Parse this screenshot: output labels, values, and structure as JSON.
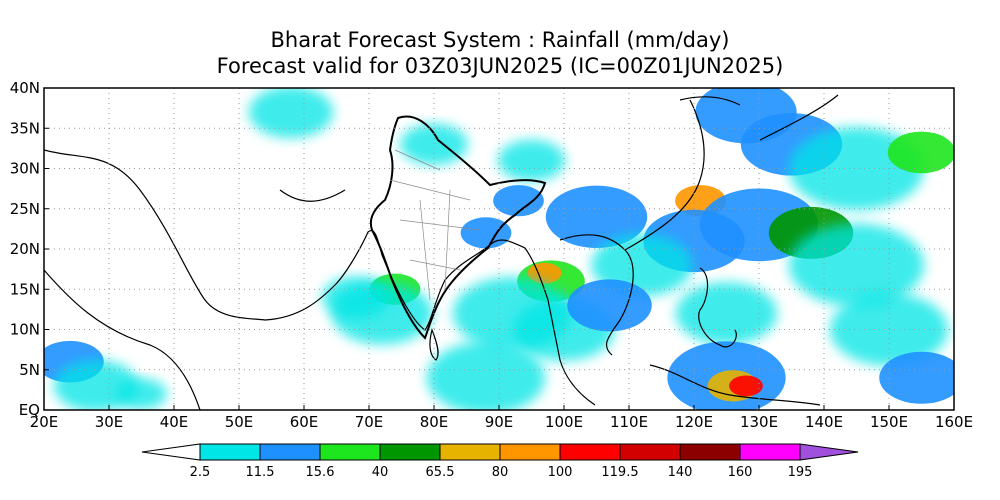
{
  "title_line1": "Bharat Forecast System : Rainfall (mm/day)",
  "title_line2": "Forecast valid for 03Z03JUN2025 (IC=00Z01JUN2025)",
  "map": {
    "lon_range": [
      20,
      160
    ],
    "lat_range": [
      0,
      40
    ],
    "lon_ticks": [
      "20E",
      "30E",
      "40E",
      "50E",
      "60E",
      "70E",
      "80E",
      "90E",
      "100E",
      "110E",
      "120E",
      "130E",
      "140E",
      "150E",
      "160E"
    ],
    "lat_ticks": [
      "EQ",
      "5N",
      "10N",
      "15N",
      "20N",
      "25N",
      "30N",
      "35N",
      "40N"
    ],
    "grid": "dotted"
  },
  "colorbar": {
    "labels": [
      "2.5",
      "11.5",
      "15.6",
      "40",
      "65.5",
      "80",
      "100",
      "119.5",
      "140",
      "160",
      "195"
    ],
    "colors": [
      "#ffffff",
      "#00e5e5",
      "#1e90ff",
      "#1ee61e",
      "#009600",
      "#e6b400",
      "#ff9600",
      "#ff0000",
      "#d20000",
      "#8c0000",
      "#ff00ff",
      "#a050dc"
    ]
  },
  "rain_regions": [
    {
      "lon": 58,
      "lat": 37,
      "r": 5,
      "level": 1
    },
    {
      "lon": 80,
      "lat": 33,
      "r": 4,
      "level": 1
    },
    {
      "lon": 95,
      "lat": 31,
      "r": 4,
      "level": 1
    },
    {
      "lon": 128,
      "lat": 37,
      "r": 6,
      "level": 2
    },
    {
      "lon": 135,
      "lat": 33,
      "r": 6,
      "level": 2
    },
    {
      "lon": 145,
      "lat": 30,
      "r": 8,
      "level": 1
    },
    {
      "lon": 155,
      "lat": 32,
      "r": 4,
      "level": 3
    },
    {
      "lon": 121,
      "lat": 26,
      "r": 3,
      "level": 6
    },
    {
      "lon": 130,
      "lat": 23,
      "r": 7,
      "level": 2
    },
    {
      "lon": 138,
      "lat": 22,
      "r": 5,
      "level": 4
    },
    {
      "lon": 145,
      "lat": 18,
      "r": 8,
      "level": 1
    },
    {
      "lon": 120,
      "lat": 21,
      "r": 6,
      "level": 2
    },
    {
      "lon": 105,
      "lat": 24,
      "r": 6,
      "level": 2
    },
    {
      "lon": 112,
      "lat": 18,
      "r": 6,
      "level": 1
    },
    {
      "lon": 98,
      "lat": 16,
      "r": 4,
      "level": 3
    },
    {
      "lon": 97,
      "lat": 17,
      "r": 2,
      "level": 6
    },
    {
      "lon": 92,
      "lat": 12,
      "r": 7,
      "level": 1
    },
    {
      "lon": 100,
      "lat": 10,
      "r": 6,
      "level": 1
    },
    {
      "lon": 107,
      "lat": 13,
      "r": 5,
      "level": 2
    },
    {
      "lon": 125,
      "lat": 12,
      "r": 6,
      "level": 1
    },
    {
      "lon": 150,
      "lat": 10,
      "r": 7,
      "level": 1
    },
    {
      "lon": 155,
      "lat": 4,
      "r": 5,
      "level": 2
    },
    {
      "lon": 125,
      "lat": 4,
      "r": 7,
      "level": 2
    },
    {
      "lon": 126,
      "lat": 3,
      "r": 3,
      "level": 5
    },
    {
      "lon": 128,
      "lat": 3,
      "r": 2,
      "level": 7
    },
    {
      "lon": 88,
      "lat": 4,
      "r": 7,
      "level": 1
    },
    {
      "lon": 74,
      "lat": 15,
      "r": 3,
      "level": 3
    },
    {
      "lon": 72,
      "lat": 12,
      "r": 6,
      "level": 1
    },
    {
      "lon": 68,
      "lat": 14,
      "r": 4,
      "level": 1
    },
    {
      "lon": 24,
      "lat": 6,
      "r": 4,
      "level": 2
    },
    {
      "lon": 28,
      "lat": 3,
      "r": 5,
      "level": 1
    },
    {
      "lon": 35,
      "lat": 2,
      "r": 3,
      "level": 1
    },
    {
      "lon": 88,
      "lat": 22,
      "r": 3,
      "level": 2
    },
    {
      "lon": 93,
      "lat": 26,
      "r": 3,
      "level": 2
    }
  ]
}
